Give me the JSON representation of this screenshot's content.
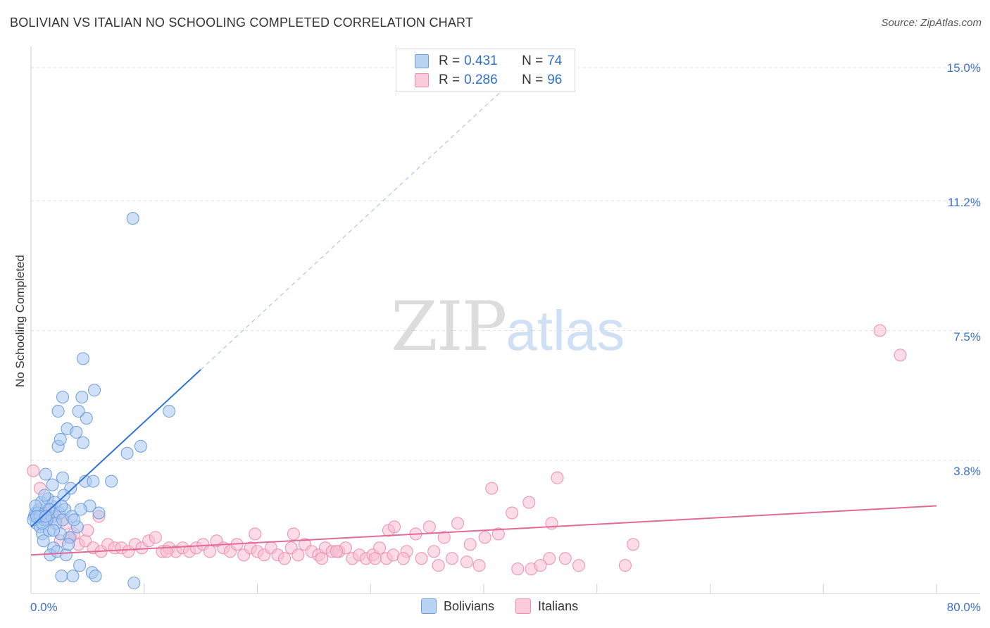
{
  "chart_data": {
    "type": "scatter",
    "title": "BOLIVIAN VS ITALIAN NO SCHOOLING COMPLETED CORRELATION CHART",
    "source": "Source: ZipAtlas.com",
    "ylabel": "No Schooling Completed",
    "xlabel": "",
    "xlim": [
      0,
      80
    ],
    "ylim": [
      0,
      15.5
    ],
    "x_tick_labels": {
      "left": "0.0%",
      "right": "80.0%"
    },
    "y_ticks": [
      {
        "value": 3.8,
        "label": "3.8%"
      },
      {
        "value": 7.5,
        "label": "7.5%"
      },
      {
        "value": 11.2,
        "label": "11.2%"
      },
      {
        "value": 15.0,
        "label": "15.0%"
      }
    ],
    "grid": true,
    "watermark": {
      "zip": "ZIP",
      "atlas": "atlas"
    },
    "colors": {
      "bolivians_fill": "#a9c9f0",
      "bolivians_stroke": "#6b9de0",
      "bolivians_line": "#2f72d6",
      "italians_fill": "#f8bdd0",
      "italians_stroke": "#ec8fb0",
      "italians_line": "#e36a96",
      "tick_label": "#3a72c8"
    },
    "legend_top": [
      {
        "r_label": "R = ",
        "r_value": "0.431",
        "n_label": "N = ",
        "n_value": "74"
      },
      {
        "r_label": "R = ",
        "r_value": "0.286",
        "n_label": "N = ",
        "n_value": "96"
      }
    ],
    "series": [
      {
        "name": "Bolivians",
        "r": 0.431,
        "n": 74,
        "trend": {
          "x0": 0.0,
          "y0": 1.9,
          "x_solid_end": 15.0,
          "x_dash_end": 42.0,
          "slope": 0.299
        },
        "points": [
          [
            0.3,
            2.2
          ],
          [
            0.5,
            2.0
          ],
          [
            0.8,
            1.9
          ],
          [
            0.4,
            2.3
          ],
          [
            1.2,
            2.1
          ],
          [
            0.7,
            2.4
          ],
          [
            1.5,
            2.2
          ],
          [
            2.0,
            2.2
          ],
          [
            1.0,
            1.7
          ],
          [
            1.8,
            2.5
          ],
          [
            2.2,
            2.0
          ],
          [
            1.4,
            2.1
          ],
          [
            0.9,
            2.6
          ],
          [
            2.5,
            2.3
          ],
          [
            3.0,
            2.4
          ],
          [
            1.6,
            1.8
          ],
          [
            2.8,
            2.1
          ],
          [
            1.1,
            1.5
          ],
          [
            2.0,
            1.3
          ],
          [
            3.4,
            1.6
          ],
          [
            1.7,
            1.1
          ],
          [
            2.3,
            1.2
          ],
          [
            3.1,
            1.1
          ],
          [
            1.9,
            3.1
          ],
          [
            1.3,
            3.4
          ],
          [
            2.8,
            3.3
          ],
          [
            3.5,
            3.0
          ],
          [
            4.8,
            3.2
          ],
          [
            5.5,
            3.2
          ],
          [
            7.1,
            3.2
          ],
          [
            2.4,
            4.2
          ],
          [
            2.6,
            4.4
          ],
          [
            3.2,
            4.7
          ],
          [
            4.0,
            4.6
          ],
          [
            4.6,
            4.3
          ],
          [
            4.9,
            5.0
          ],
          [
            2.4,
            5.2
          ],
          [
            4.2,
            5.2
          ],
          [
            2.8,
            5.6
          ],
          [
            4.5,
            5.6
          ],
          [
            5.6,
            5.8
          ],
          [
            4.6,
            6.7
          ],
          [
            8.5,
            4.0
          ],
          [
            9.7,
            4.2
          ],
          [
            12.2,
            5.2
          ],
          [
            9.0,
            10.7
          ],
          [
            2.7,
            0.5
          ],
          [
            3.7,
            0.5
          ],
          [
            4.3,
            0.8
          ],
          [
            5.4,
            0.6
          ],
          [
            5.7,
            0.5
          ],
          [
            9.1,
            0.3
          ],
          [
            0.6,
            2.3
          ],
          [
            1.5,
            2.7
          ],
          [
            0.2,
            2.1
          ],
          [
            2.9,
            2.8
          ],
          [
            3.6,
            2.2
          ],
          [
            4.1,
            1.9
          ],
          [
            0.4,
            2.5
          ],
          [
            1.2,
            2.8
          ],
          [
            2.1,
            2.6
          ],
          [
            5.2,
            2.5
          ],
          [
            6.0,
            2.3
          ],
          [
            1.0,
            2.0
          ],
          [
            0.8,
            2.2
          ],
          [
            2.6,
            1.7
          ],
          [
            3.3,
            1.4
          ],
          [
            1.6,
            2.4
          ],
          [
            0.5,
            2.2
          ],
          [
            2.0,
            1.8
          ],
          [
            3.8,
            2.1
          ],
          [
            1.3,
            2.2
          ],
          [
            2.7,
            2.5
          ],
          [
            4.4,
            2.4
          ]
        ]
      },
      {
        "name": "Italians",
        "r": 0.286,
        "n": 96,
        "trend": {
          "x0": 0.0,
          "y0": 1.1,
          "x_end": 80.0,
          "slope": 0.0175
        },
        "points": [
          [
            0.2,
            3.5
          ],
          [
            0.8,
            3.0
          ],
          [
            1.4,
            2.3
          ],
          [
            2.2,
            2.1
          ],
          [
            3.1,
            2.0
          ],
          [
            6.0,
            2.2
          ],
          [
            2.6,
            1.5
          ],
          [
            3.5,
            1.6
          ],
          [
            4.2,
            1.4
          ],
          [
            4.8,
            1.5
          ],
          [
            5.5,
            1.3
          ],
          [
            6.2,
            1.2
          ],
          [
            6.8,
            1.4
          ],
          [
            7.4,
            1.3
          ],
          [
            8.0,
            1.3
          ],
          [
            8.6,
            1.2
          ],
          [
            9.2,
            1.4
          ],
          [
            9.8,
            1.3
          ],
          [
            10.4,
            1.5
          ],
          [
            11.0,
            1.6
          ],
          [
            11.6,
            1.2
          ],
          [
            12.2,
            1.3
          ],
          [
            12.8,
            1.2
          ],
          [
            13.4,
            1.3
          ],
          [
            14.0,
            1.2
          ],
          [
            14.6,
            1.3
          ],
          [
            15.2,
            1.4
          ],
          [
            15.8,
            1.2
          ],
          [
            16.4,
            1.5
          ],
          [
            17.0,
            1.3
          ],
          [
            17.6,
            1.2
          ],
          [
            18.2,
            1.4
          ],
          [
            18.8,
            1.1
          ],
          [
            19.4,
            1.3
          ],
          [
            20.0,
            1.2
          ],
          [
            20.6,
            1.1
          ],
          [
            21.2,
            1.3
          ],
          [
            21.8,
            1.1
          ],
          [
            22.4,
            1.0
          ],
          [
            23.0,
            1.3
          ],
          [
            23.6,
            1.1
          ],
          [
            24.2,
            1.4
          ],
          [
            24.8,
            1.2
          ],
          [
            25.4,
            1.1
          ],
          [
            26.0,
            1.3
          ],
          [
            26.6,
            1.2
          ],
          [
            27.2,
            1.2
          ],
          [
            27.8,
            1.3
          ],
          [
            28.4,
            1.0
          ],
          [
            29.0,
            1.1
          ],
          [
            29.6,
            1.0
          ],
          [
            30.2,
            1.1
          ],
          [
            30.8,
            1.3
          ],
          [
            31.4,
            1.0
          ],
          [
            32.0,
            1.1
          ],
          [
            19.8,
            1.7
          ],
          [
            23.2,
            1.7
          ],
          [
            31.6,
            1.8
          ],
          [
            32.1,
            1.9
          ],
          [
            35.2,
            1.9
          ],
          [
            37.7,
            2.0
          ],
          [
            34.0,
            1.7
          ],
          [
            36.5,
            1.6
          ],
          [
            38.8,
            1.4
          ],
          [
            40.1,
            1.6
          ],
          [
            41.3,
            1.7
          ],
          [
            42.5,
            2.3
          ],
          [
            44.0,
            2.6
          ],
          [
            46.0,
            2.0
          ],
          [
            46.5,
            3.3
          ],
          [
            40.7,
            3.0
          ],
          [
            43.0,
            0.7
          ],
          [
            44.2,
            0.7
          ],
          [
            45.8,
            1.0
          ],
          [
            47.2,
            1.0
          ],
          [
            48.4,
            0.8
          ],
          [
            36.0,
            0.8
          ],
          [
            37.2,
            1.0
          ],
          [
            38.5,
            0.9
          ],
          [
            39.6,
            0.8
          ],
          [
            33.2,
            1.2
          ],
          [
            34.5,
            1.0
          ],
          [
            35.6,
            1.2
          ],
          [
            27.0,
            1.2
          ],
          [
            30.4,
            1.0
          ],
          [
            32.9,
            1.0
          ],
          [
            25.7,
            1.0
          ],
          [
            52.5,
            0.8
          ],
          [
            45.0,
            0.8
          ],
          [
            53.2,
            1.4
          ],
          [
            75.0,
            7.5
          ],
          [
            76.8,
            6.8
          ],
          [
            12.0,
            1.2
          ],
          [
            5.0,
            1.8
          ],
          [
            1.8,
            2.2
          ],
          [
            3.8,
            1.7
          ]
        ]
      }
    ]
  }
}
